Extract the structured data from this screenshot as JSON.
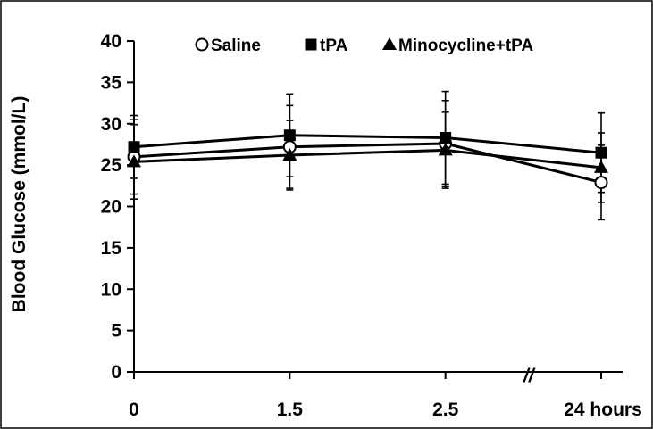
{
  "chart_data": {
    "type": "line",
    "title": "",
    "xlabel": "",
    "ylabel": "Blood Glucose (mmol/L)",
    "x": [
      "0",
      "1.5",
      "2.5",
      "24 hours"
    ],
    "x_axis_break_marker": "//",
    "ylim": [
      0,
      40
    ],
    "yticks": [
      0,
      5,
      10,
      15,
      20,
      25,
      30,
      35,
      40
    ],
    "grid": false,
    "legend_position": "top-center",
    "series": [
      {
        "name": "Saline",
        "marker": "open-circle",
        "values": [
          26.0,
          27.2,
          27.6,
          22.9
        ],
        "error": [
          4.5,
          5.0,
          5.2,
          4.5
        ]
      },
      {
        "name": "tPA",
        "marker": "filled-square",
        "values": [
          27.2,
          28.6,
          28.3,
          26.5
        ],
        "error": [
          3.8,
          5.0,
          5.6,
          4.8
        ]
      },
      {
        "name": "Minocycline+tPA",
        "marker": "filled-triangle",
        "values": [
          25.4,
          26.2,
          26.8,
          24.7
        ],
        "error": [
          4.5,
          4.2,
          4.6,
          4.2
        ]
      }
    ],
    "colors": {
      "line": "#000000",
      "open_marker_fill": "#ffffff"
    }
  }
}
